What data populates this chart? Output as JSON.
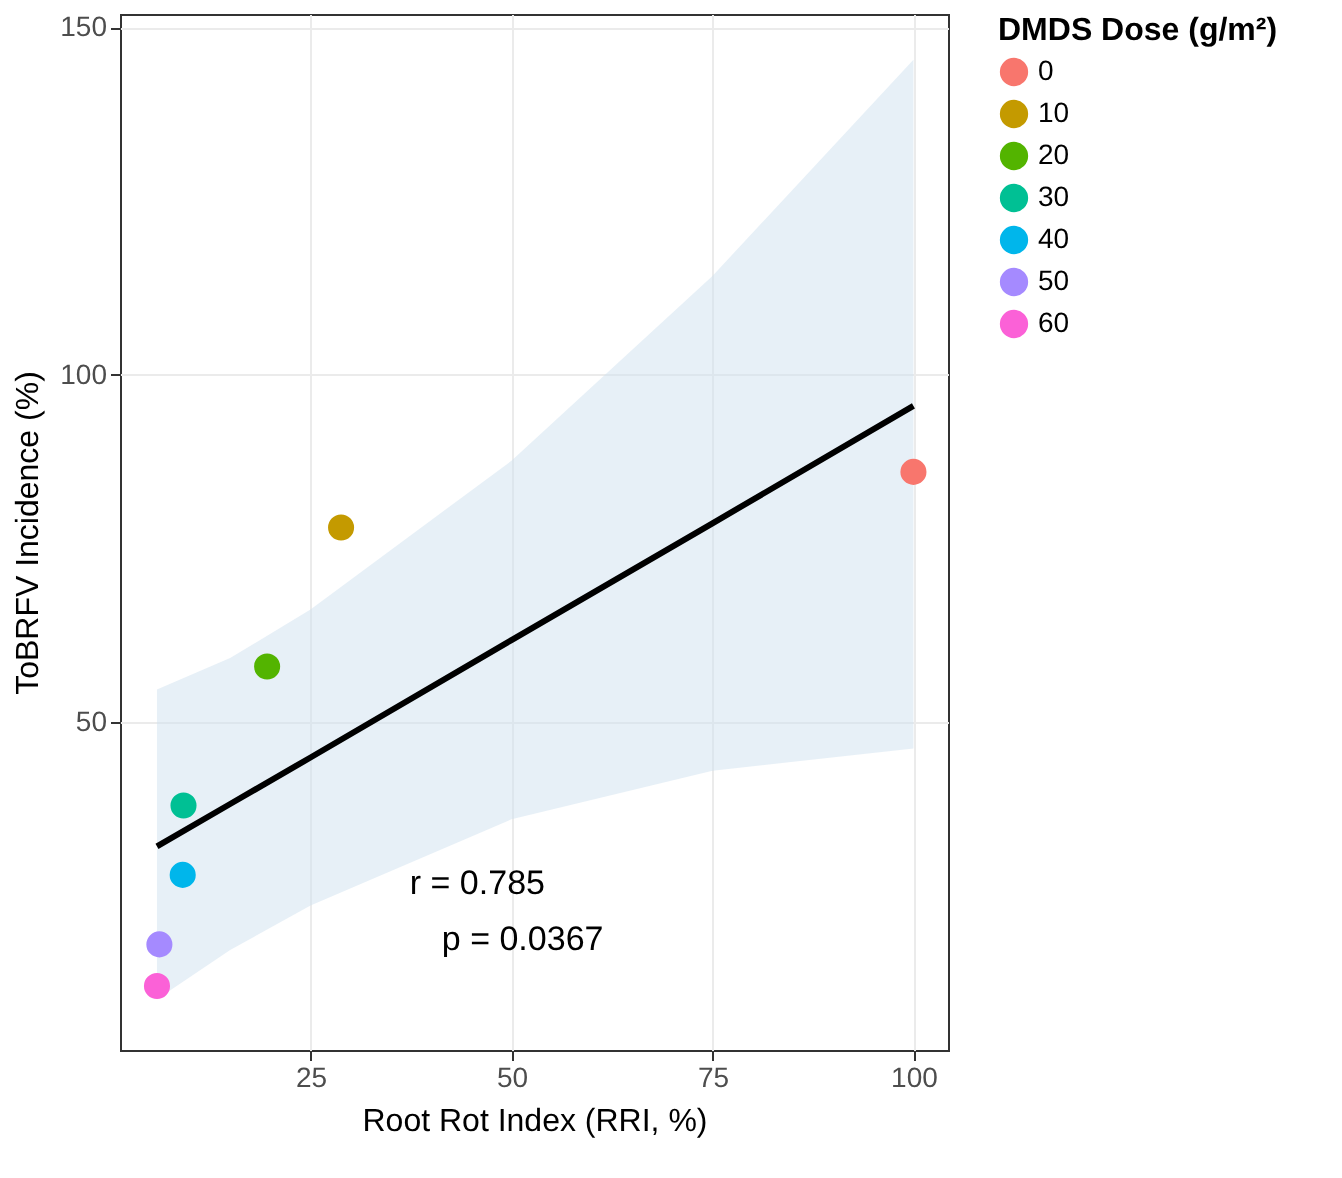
{
  "chart_data": {
    "type": "scatter",
    "xlabel": "Root Rot Index (RRI, %)",
    "ylabel": "ToBRFV Incidence (%)",
    "legend_title": "DMDS Dose (g/m²)",
    "xlim": [
      1.3,
      104.3
    ],
    "ylim": [
      2.8,
      151.9
    ],
    "xticks": [
      25,
      50,
      75,
      100
    ],
    "yticks": [
      50,
      100,
      150
    ],
    "grid": true,
    "legend": "right",
    "marker": "circle",
    "series": [
      {
        "name": "0",
        "color": "#f8766d",
        "x": [
          100
        ],
        "values": [
          86
        ]
      },
      {
        "name": "10",
        "color": "#c49a00",
        "x": [
          28.8
        ],
        "values": [
          78
        ]
      },
      {
        "name": "20",
        "color": "#53b400",
        "x": [
          19.6
        ],
        "values": [
          58
        ]
      },
      {
        "name": "30",
        "color": "#00c094",
        "x": [
          9.2
        ],
        "values": [
          38
        ]
      },
      {
        "name": "40",
        "color": "#00b6eb",
        "x": [
          9.1
        ],
        "values": [
          28
        ]
      },
      {
        "name": "50",
        "color": "#a58aff",
        "x": [
          6.2
        ],
        "values": [
          18
        ]
      },
      {
        "name": "60",
        "color": "#fb61d7",
        "x": [
          5.9
        ],
        "values": [
          12
        ]
      },
      {
        "type": "line",
        "marker": "none",
        "color": "#000000",
        "x": [
          5.9,
          15,
          25,
          50,
          75,
          100
        ],
        "values": [
          32.1,
          38.2,
          44.9,
          61.8,
          78.6,
          95.5
        ],
        "lower": [
          10.1,
          17.2,
          23.6,
          36.0,
          43.0,
          46.2
        ],
        "upper": [
          54.7,
          59.2,
          66.2,
          87.6,
          114.2,
          145.3
        ]
      }
    ],
    "annotations": [
      "r = 0.785",
      "p = 0.0367"
    ]
  }
}
